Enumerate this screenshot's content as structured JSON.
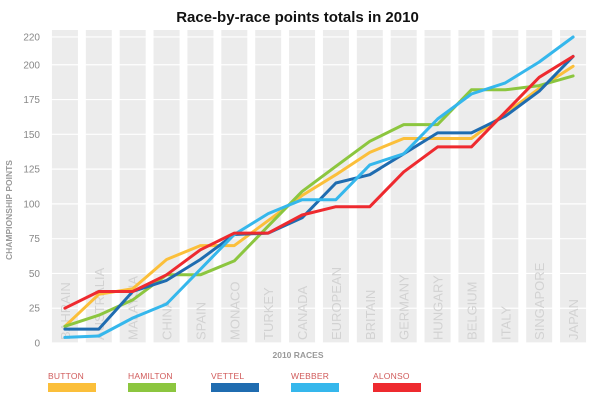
{
  "colors": {
    "BUTTON": "#fbbf3a",
    "HAMILTON": "#8cc63f",
    "VETTEL": "#1f6cb0",
    "WEBBER": "#35b7ec",
    "ALONSO": "#ee2a2f",
    "column_band": "#ececec",
    "grid": "#ffffff",
    "race_label": "#d2d2d2",
    "legend_text": "#d05a5a"
  },
  "chart_data": {
    "type": "line",
    "title": "Race-by-race points totals in 2010",
    "xlabel": "2010 RACES",
    "ylabel": "CHAMPIONSHIP POINTS",
    "ylim": [
      0,
      225
    ],
    "yticks": [
      0,
      25,
      50,
      75,
      100,
      125,
      150,
      175,
      200,
      220
    ],
    "grid": true,
    "legend_position": "bottom",
    "categories": [
      "BAHRAIN",
      "AUSTRALIA",
      "MALAYSIA",
      "CHINA",
      "SPAIN",
      "MONACO",
      "TURKEY",
      "CANADA",
      "EUROPEAN",
      "BRITAIN",
      "GERMANY",
      "HUNGARY",
      "BELGIUM",
      "ITALY",
      "SINGAPORE",
      "JAPAN"
    ],
    "series": [
      {
        "name": "BUTTON",
        "values": [
          12,
          35,
          39,
          60,
          70,
          70,
          88,
          106,
          121,
          137,
          147,
          147,
          147,
          165,
          183,
          199
        ]
      },
      {
        "name": "HAMILTON",
        "values": [
          12,
          20,
          31,
          49,
          49,
          59,
          84,
          109,
          127,
          145,
          157,
          157,
          182,
          182,
          185,
          192
        ]
      },
      {
        "name": "VETTEL",
        "values": [
          10,
          10,
          37,
          45,
          60,
          78,
          79,
          90,
          115,
          121,
          136,
          151,
          151,
          163,
          181,
          206
        ]
      },
      {
        "name": "WEBBER",
        "values": [
          4,
          5,
          18,
          28,
          53,
          78,
          93,
          103,
          103,
          128,
          136,
          161,
          179,
          187,
          202,
          220
        ]
      },
      {
        "name": "ALONSO",
        "values": [
          25,
          37,
          37,
          49,
          67,
          79,
          79,
          92,
          98,
          98,
          123,
          141,
          141,
          166,
          191,
          206
        ]
      }
    ]
  }
}
